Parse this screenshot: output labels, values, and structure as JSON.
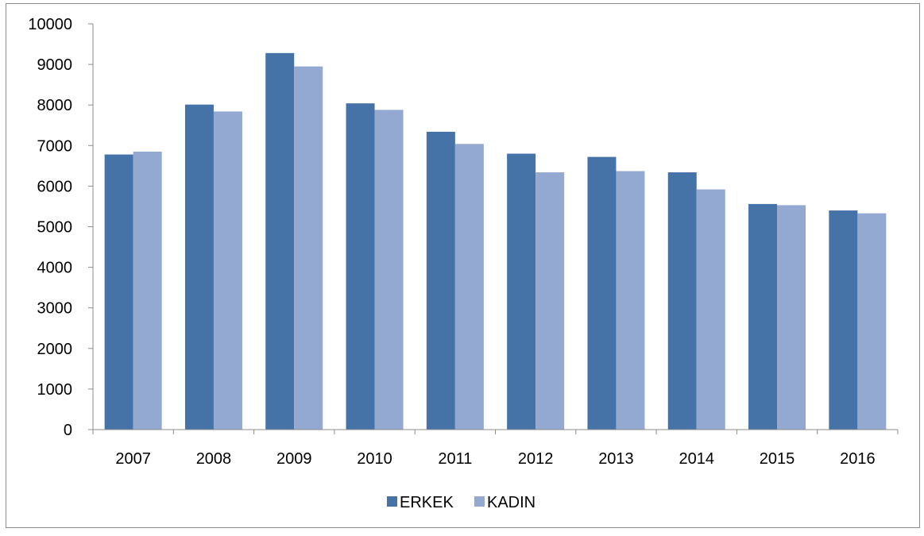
{
  "chart_data": {
    "type": "bar",
    "categories": [
      "2007",
      "2008",
      "2009",
      "2010",
      "2011",
      "2012",
      "2013",
      "2014",
      "2015",
      "2016"
    ],
    "series": [
      {
        "name": "ERKEK",
        "color": "#4572a7",
        "values": [
          6780,
          8010,
          9280,
          8040,
          7340,
          6800,
          6720,
          6340,
          5560,
          5400
        ]
      },
      {
        "name": "KADIN",
        "color": "#94a9d1",
        "values": [
          6850,
          7840,
          8950,
          7880,
          7040,
          6340,
          6370,
          5920,
          5530,
          5330
        ]
      }
    ],
    "ylim": [
      0,
      10000
    ],
    "yticks": [
      "0",
      "1000",
      "2000",
      "3000",
      "4000",
      "5000",
      "6000",
      "7000",
      "8000",
      "9000",
      "10000"
    ],
    "grid": false,
    "legend_position": "bottom"
  }
}
